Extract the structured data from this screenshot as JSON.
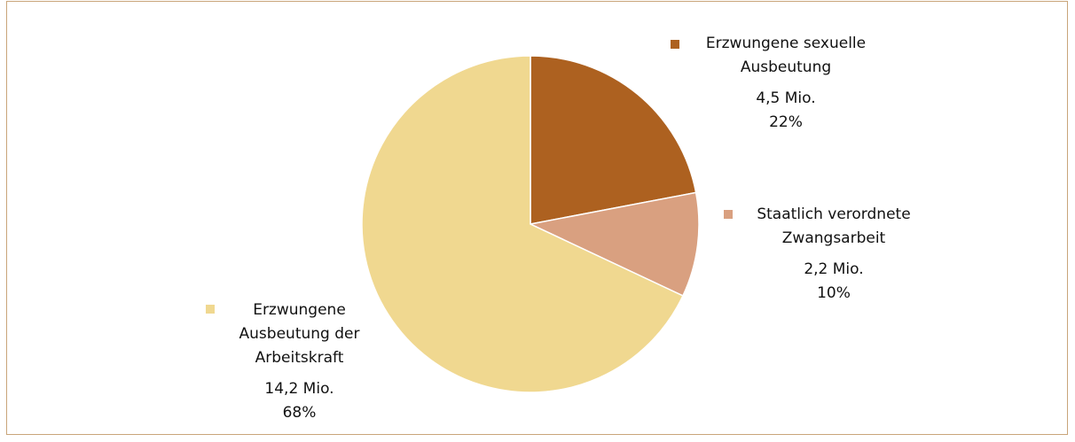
{
  "chart_data": {
    "type": "pie",
    "categories": [
      "Erzwungene sexuelle Ausbeutung",
      "Staatlich verordnete Zwangsarbeit",
      "Erzwungene Ausbeutung der Arbeitskraft"
    ],
    "values": [
      22,
      10,
      68
    ],
    "value_labels": [
      "22%",
      "10%",
      "68%"
    ],
    "amount_labels": [
      "4,5 Mio.",
      "2,2 Mio.",
      "14,2 Mio."
    ],
    "colors": [
      "#ad6120",
      "#d9a080",
      "#f0d890"
    ]
  }
}
